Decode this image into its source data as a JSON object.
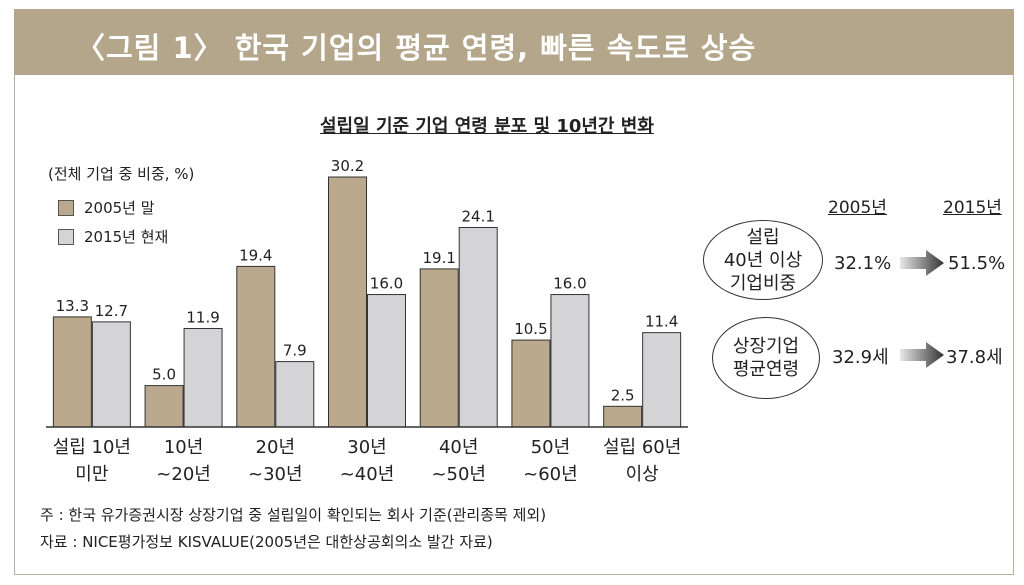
{
  "banner": {
    "title": "〈그림 1〉 한국 기업의 평균 연령, 빠른 속도로 상승"
  },
  "chart_data": {
    "type": "bar",
    "title": "설립일 기준 기업 연령 분포 및 10년간 변화",
    "unit_label": "(전체 기업 중 비중, %)",
    "categories": [
      "설립 10년\n미만",
      "10년\n~20년",
      "20년\n~30년",
      "30년\n~40년",
      "40년\n~50년",
      "50년\n~60년",
      "설립 60년\n이상"
    ],
    "series": [
      {
        "name": "2005년 말",
        "color": "#baa98c",
        "values": [
          13.3,
          5.0,
          19.4,
          30.2,
          19.1,
          10.5,
          2.5
        ]
      },
      {
        "name": "2015년 현재",
        "color": "#d4d4d6",
        "values": [
          12.7,
          11.9,
          7.9,
          16.0,
          24.1,
          16.0,
          11.4
        ]
      }
    ],
    "value_labels": [
      [
        "13.3",
        "5.0",
        "19.4",
        "30.2",
        "19.1",
        "10.5",
        "2.5"
      ],
      [
        "12.7",
        "11.9",
        "7.9",
        "16.0",
        "24.1",
        "16.0",
        "11.4"
      ]
    ],
    "ylim": [
      0,
      30.2
    ],
    "legend": "top-left",
    "grid": false
  },
  "comparison": {
    "headers": [
      "2005년",
      "2015년"
    ],
    "rows": [
      {
        "label": "설립\n40년 이상\n기업비중",
        "from": "32.1%",
        "to": "51.5%"
      },
      {
        "label": "상장기업\n평균연령",
        "from": "32.9세",
        "to": "37.8세"
      }
    ],
    "arrow_icon": "right-arrow-icon"
  },
  "notes": {
    "note": "주 : 한국 유가증권시장 상장기업 중 설립일이 확인되는 회사 기준(관리종목 제외)",
    "source": "자료 : NICE평가정보 KISVALUE(2005년은 대한상공회의소 발간 자료)"
  }
}
